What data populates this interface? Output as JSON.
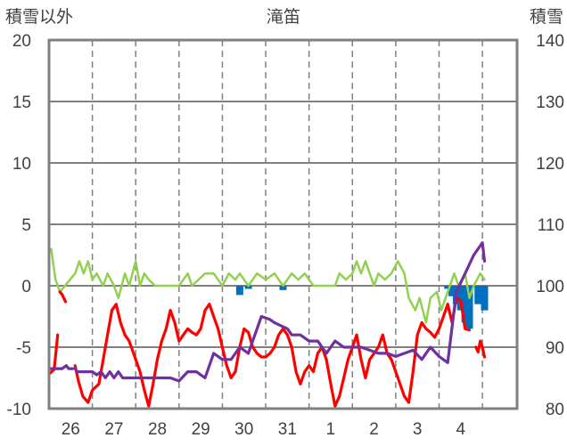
{
  "chart_data": {
    "type": "line",
    "title": "滝笛",
    "y_left_label": "積雪以外",
    "y_right_label": "積雪",
    "y_left_range": [
      -10,
      20
    ],
    "y_right_range": [
      80,
      140
    ],
    "y_left_ticks": [
      "-10",
      "-5",
      "0",
      "5",
      "10",
      "15",
      "20"
    ],
    "y_right_ticks": [
      "80",
      "90",
      "100",
      "110",
      "120",
      "130",
      "140"
    ],
    "x_range": [
      0,
      10.8
    ],
    "x_ticks": [
      {
        "pos": 0.5,
        "label": "26"
      },
      {
        "pos": 1.5,
        "label": "27"
      },
      {
        "pos": 2.5,
        "label": "28"
      },
      {
        "pos": 3.5,
        "label": "29"
      },
      {
        "pos": 4.5,
        "label": "30"
      },
      {
        "pos": 5.5,
        "label": "31"
      },
      {
        "pos": 6.5,
        "label": "1"
      },
      {
        "pos": 7.5,
        "label": "2"
      },
      {
        "pos": 8.5,
        "label": "3"
      },
      {
        "pos": 9.5,
        "label": "4"
      }
    ],
    "grid_x_dashed": [
      1,
      2,
      3,
      4,
      5,
      6,
      7,
      8,
      9,
      10
    ],
    "grid": true,
    "series": [
      {
        "axis": "left",
        "color": "#92D050",
        "points": [
          [
            0.05,
            3
          ],
          [
            0.15,
            0.5
          ],
          [
            0.25,
            -0.5
          ],
          [
            0.6,
            1
          ],
          [
            0.7,
            2
          ],
          [
            0.8,
            1
          ],
          [
            0.9,
            2
          ],
          [
            1.0,
            0.5
          ],
          [
            1.1,
            1
          ],
          [
            1.25,
            0
          ],
          [
            1.35,
            1
          ],
          [
            1.5,
            0
          ],
          [
            1.6,
            -1
          ],
          [
            1.75,
            1
          ],
          [
            1.85,
            0
          ],
          [
            2.0,
            2
          ],
          [
            2.1,
            0
          ],
          [
            2.2,
            1
          ],
          [
            2.3,
            0.5
          ],
          [
            2.45,
            0
          ],
          [
            2.7,
            0
          ],
          [
            3.0,
            0
          ],
          [
            3.2,
            1
          ],
          [
            3.3,
            0
          ],
          [
            3.6,
            1
          ],
          [
            3.8,
            1
          ],
          [
            4.0,
            0
          ],
          [
            4.15,
            1
          ],
          [
            4.3,
            0.5
          ],
          [
            4.4,
            1
          ],
          [
            4.6,
            0
          ],
          [
            4.8,
            1
          ],
          [
            5.0,
            0.5
          ],
          [
            5.2,
            1
          ],
          [
            5.4,
            0
          ],
          [
            5.6,
            1
          ],
          [
            5.75,
            0.5
          ],
          [
            5.9,
            1
          ],
          [
            6.1,
            0
          ],
          [
            6.4,
            0
          ],
          [
            6.6,
            0
          ],
          [
            6.7,
            1
          ],
          [
            6.85,
            0.5
          ],
          [
            7.0,
            1
          ],
          [
            7.1,
            2
          ],
          [
            7.2,
            1
          ],
          [
            7.3,
            2
          ],
          [
            7.4,
            1
          ],
          [
            7.5,
            0
          ],
          [
            7.6,
            1
          ],
          [
            7.75,
            0.5
          ],
          [
            7.9,
            1
          ],
          [
            8.05,
            2
          ],
          [
            8.2,
            1
          ],
          [
            8.3,
            -1
          ],
          [
            8.45,
            -2
          ],
          [
            8.55,
            -1
          ],
          [
            8.7,
            -3
          ],
          [
            8.8,
            -1
          ],
          [
            8.95,
            -0.5
          ],
          [
            9.05,
            -2
          ],
          [
            9.15,
            -1
          ],
          [
            9.25,
            0
          ],
          [
            9.35,
            1
          ],
          [
            9.45,
            0
          ],
          [
            9.6,
            1
          ],
          [
            9.7,
            -1
          ],
          [
            9.8,
            0
          ],
          [
            9.95,
            1
          ],
          [
            10.05,
            0.5
          ]
        ]
      },
      {
        "axis": "left",
        "color": "#FF0000",
        "segments": [
          [
            [
              0.0,
              -7.2
            ],
            [
              0.12,
              -6.8
            ],
            [
              0.2,
              -4
            ]
          ],
          [
            [
              0.25,
              -0.5
            ],
            [
              0.3,
              -0.7
            ],
            [
              0.38,
              -1.3
            ]
          ],
          [
            [
              0.6,
              -6.5
            ],
            [
              0.68,
              -7.8
            ],
            [
              0.78,
              -9
            ],
            [
              0.9,
              -9.5
            ],
            [
              1.0,
              -8.5
            ],
            [
              1.15,
              -8
            ],
            [
              1.25,
              -6
            ],
            [
              1.35,
              -4
            ],
            [
              1.45,
              -2
            ],
            [
              1.55,
              -1.5
            ],
            [
              1.65,
              -3
            ],
            [
              1.75,
              -4
            ],
            [
              1.85,
              -4.5
            ],
            [
              1.95,
              -5.5
            ],
            [
              2.0,
              -6
            ],
            [
              2.1,
              -7
            ],
            [
              2.2,
              -8.5
            ],
            [
              2.3,
              -9.8
            ],
            [
              2.4,
              -8
            ],
            [
              2.5,
              -6
            ],
            [
              2.6,
              -4.5
            ],
            [
              2.7,
              -3.5
            ],
            [
              2.8,
              -2
            ],
            [
              2.9,
              -3
            ],
            [
              3.0,
              -4.5
            ],
            [
              3.1,
              -4
            ],
            [
              3.2,
              -3.5
            ],
            [
              3.3,
              -3.8
            ],
            [
              3.4,
              -4
            ],
            [
              3.5,
              -3.5
            ],
            [
              3.6,
              -2
            ],
            [
              3.7,
              -1.5
            ],
            [
              3.8,
              -2.5
            ],
            [
              3.9,
              -3.5
            ],
            [
              4.0,
              -5
            ],
            [
              4.1,
              -6.5
            ],
            [
              4.2,
              -7.5
            ],
            [
              4.3,
              -7
            ],
            [
              4.4,
              -5
            ],
            [
              4.5,
              -3.5
            ],
            [
              4.6,
              -3.8
            ],
            [
              4.7,
              -5
            ],
            [
              4.8,
              -5.5
            ],
            [
              4.9,
              -5.8
            ],
            [
              5.0,
              -5.8
            ],
            [
              5.1,
              -5.5
            ],
            [
              5.2,
              -5
            ],
            [
              5.3,
              -4
            ],
            [
              5.4,
              -3.5
            ],
            [
              5.5,
              -4
            ],
            [
              5.6,
              -5
            ],
            [
              5.7,
              -7
            ],
            [
              5.8,
              -8
            ],
            [
              5.9,
              -7
            ],
            [
              6.0,
              -6.5
            ],
            [
              6.1,
              -7
            ],
            [
              6.2,
              -5.5
            ],
            [
              6.3,
              -5
            ],
            [
              6.4,
              -6
            ],
            [
              6.5,
              -8
            ],
            [
              6.6,
              -9.8
            ],
            [
              6.7,
              -9
            ],
            [
              6.8,
              -7.5
            ],
            [
              6.9,
              -6
            ],
            [
              7.0,
              -5
            ],
            [
              7.1,
              -4
            ],
            [
              7.2,
              -6
            ],
            [
              7.3,
              -7.5
            ],
            [
              7.4,
              -6
            ],
            [
              7.5,
              -5.5
            ],
            [
              7.6,
              -5
            ],
            [
              7.7,
              -4
            ],
            [
              7.8,
              -5.5
            ],
            [
              7.9,
              -6
            ],
            [
              8.0,
              -7
            ],
            [
              8.1,
              -8
            ],
            [
              8.2,
              -9
            ],
            [
              8.3,
              -9.5
            ],
            [
              8.4,
              -7
            ],
            [
              8.5,
              -4
            ],
            [
              8.6,
              -3
            ],
            [
              8.7,
              -3.5
            ],
            [
              8.8,
              -3.8
            ],
            [
              8.9,
              -4.2
            ],
            [
              9.0,
              -3.5
            ],
            [
              9.1,
              -2.5
            ],
            [
              9.2,
              -1.5
            ],
            [
              9.3,
              -3
            ],
            [
              9.4,
              -1
            ],
            [
              9.5,
              -1.2
            ],
            [
              9.6,
              -3.5
            ],
            [
              9.7,
              -3.6
            ]
          ],
          [
            [
              9.85,
              -5
            ],
            [
              9.9,
              -5.4
            ],
            [
              9.95,
              -4.5
            ],
            [
              10.0,
              -5
            ],
            [
              10.05,
              -5.8
            ]
          ]
        ]
      },
      {
        "axis": "right",
        "color": "#7030A0",
        "segments": [
          [
            [
              0.0,
              86.5
            ],
            [
              0.3,
              86.5
            ],
            [
              0.4,
              87
            ],
            [
              0.45,
              86.5
            ],
            [
              0.55,
              86.5
            ]
          ],
          [
            [
              0.6,
              86.5
            ],
            [
              0.65,
              86
            ],
            [
              1.0,
              86
            ],
            [
              1.1,
              85.5
            ],
            [
              1.2,
              86
            ],
            [
              1.3,
              85
            ],
            [
              1.4,
              86
            ],
            [
              1.5,
              85
            ],
            [
              1.6,
              86
            ],
            [
              1.7,
              85
            ],
            [
              1.8,
              85
            ],
            [
              2.8,
              85
            ],
            [
              3.0,
              84.5
            ],
            [
              3.2,
              86
            ],
            [
              3.4,
              86
            ],
            [
              3.6,
              85
            ],
            [
              3.8,
              89
            ],
            [
              4.0,
              88
            ],
            [
              4.2,
              88
            ],
            [
              4.4,
              90
            ],
            [
              4.6,
              89
            ],
            [
              4.8,
              93
            ],
            [
              4.9,
              95
            ],
            [
              5.1,
              94.5
            ],
            [
              5.2,
              94
            ],
            [
              5.5,
              93
            ],
            [
              5.6,
              92
            ],
            [
              5.8,
              92
            ],
            [
              6.0,
              91
            ],
            [
              6.2,
              91
            ],
            [
              6.4,
              89
            ],
            [
              6.6,
              91
            ],
            [
              6.8,
              90
            ],
            [
              7.0,
              90
            ],
            [
              7.2,
              90
            ],
            [
              7.4,
              89.5
            ],
            [
              7.6,
              89
            ],
            [
              7.8,
              89
            ],
            [
              8.0,
              88.5
            ],
            [
              8.2,
              89
            ],
            [
              8.4,
              89.5
            ],
            [
              8.6,
              88
            ],
            [
              8.8,
              90
            ],
            [
              9.0,
              88.5
            ],
            [
              9.2,
              87.5
            ],
            [
              9.4,
              99
            ],
            [
              9.6,
              102
            ],
            [
              9.8,
              105
            ],
            [
              10.0,
              107
            ],
            [
              10.05,
              104
            ]
          ]
        ]
      }
    ],
    "bars": {
      "axis": "right",
      "color": "#0070C0",
      "items": [
        [
          4.4,
          98.5
        ],
        [
          4.6,
          99.5
        ],
        [
          5.4,
          99.3
        ],
        [
          9.2,
          99.5
        ],
        [
          9.3,
          98.3
        ],
        [
          9.4,
          97
        ],
        [
          9.5,
          96
        ],
        [
          9.6,
          94
        ],
        [
          9.7,
          93
        ],
        [
          9.9,
          97
        ],
        [
          10.05,
          96
        ]
      ]
    }
  }
}
